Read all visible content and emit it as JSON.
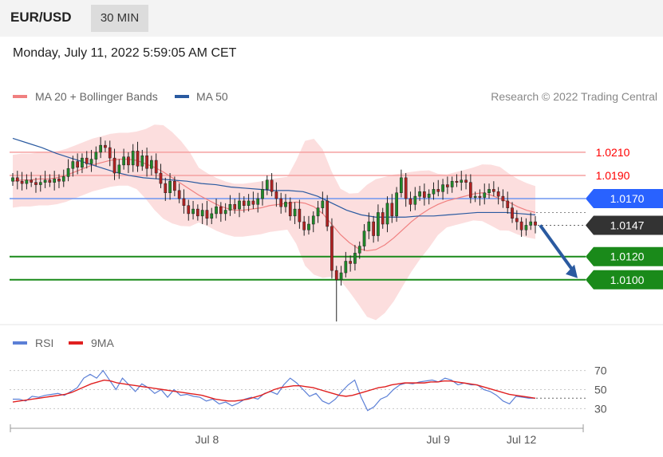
{
  "header": {
    "pair": "EUR/USD",
    "timeframe": "30 MIN"
  },
  "timestamp": "Monday, July 11, 2022 5:59:05 AM CET",
  "legend": {
    "items": [
      {
        "label": "MA 20 + Bollinger Bands",
        "color": "#f08080"
      },
      {
        "label": "MA 50",
        "color": "#2a5aa0"
      }
    ],
    "credit": "Research © 2022 Trading Central"
  },
  "rsi_legend": {
    "items": [
      {
        "label": "RSI",
        "color": "#5b7fd6"
      },
      {
        "label": "9MA",
        "color": "#e02020"
      }
    ]
  },
  "chart_data": [
    {
      "type": "candlestick",
      "ylim": [
        1.0062,
        1.0245
      ],
      "current_price": 1.0147,
      "levels": [
        {
          "value": 1.021,
          "label": "1.0210",
          "kind": "resistance",
          "color": "#ff0000"
        },
        {
          "value": 1.019,
          "label": "1.0190",
          "kind": "resistance",
          "color": "#ff0000"
        },
        {
          "value": 1.017,
          "label": "1.0170",
          "kind": "pivot",
          "color": "#2962ff"
        },
        {
          "value": 1.0147,
          "label": "1.0147",
          "kind": "last",
          "color": "#333333"
        },
        {
          "value": 1.012,
          "label": "1.0120",
          "kind": "support",
          "color": "#1a8a1a"
        },
        {
          "value": 1.01,
          "label": "1.0100",
          "kind": "support",
          "color": "#1a8a1a"
        }
      ],
      "forecast": {
        "from": 1.0147,
        "to": 1.01,
        "color": "#2a5aa0"
      },
      "closes": [
        1.0188,
        1.0185,
        1.0183,
        1.0186,
        1.0184,
        1.0182,
        1.0184,
        1.0186,
        1.0184,
        1.0187,
        1.0185,
        1.0189,
        1.0196,
        1.0202,
        1.0197,
        1.0205,
        1.02,
        1.0204,
        1.021,
        1.0216,
        1.0214,
        1.0205,
        1.0192,
        1.0199,
        1.0206,
        1.0199,
        1.0211,
        1.0198,
        1.0207,
        1.0196,
        1.0203,
        1.0192,
        1.0183,
        1.0175,
        1.0185,
        1.0177,
        1.017,
        1.0164,
        1.0157,
        1.0161,
        1.0155,
        1.016,
        1.0153,
        1.0157,
        1.0163,
        1.0157,
        1.016,
        1.0165,
        1.0161,
        1.0168,
        1.0164,
        1.0168,
        1.0165,
        1.017,
        1.0178,
        1.0186,
        1.0176,
        1.017,
        1.0163,
        1.0167,
        1.0155,
        1.0161,
        1.015,
        1.0143,
        1.0148,
        1.0155,
        1.0162,
        1.0168,
        1.0146,
        1.0108,
        1.01,
        1.0106,
        1.0116,
        1.0114,
        1.0123,
        1.0129,
        1.0142,
        1.015,
        1.0138,
        1.0158,
        1.0148,
        1.0166,
        1.0155,
        1.0175,
        1.0188,
        1.017,
        1.0165,
        1.0172,
        1.0176,
        1.0171,
        1.0174,
        1.0178,
        1.0176,
        1.0182,
        1.018,
        1.0185,
        1.0184,
        1.0186,
        1.0184,
        1.0171,
        1.0172,
        1.0171,
        1.0175,
        1.0178,
        1.0176,
        1.0172,
        1.0168,
        1.0162,
        1.0153,
        1.015,
        1.0143,
        1.0147,
        1.015,
        1.0147
      ],
      "ma20": [
        1.0185,
        1.0186,
        1.0186,
        1.0187,
        1.0187,
        1.0188,
        1.019,
        1.0193,
        1.0196,
        1.0199,
        1.0201,
        1.0203,
        1.0204,
        1.0204,
        1.0203,
        1.02,
        1.0197,
        1.0193,
        1.0188,
        1.0183,
        1.0178,
        1.0173,
        1.0169,
        1.0165,
        1.0162,
        1.016,
        1.016,
        1.0161,
        1.0162,
        1.0164,
        1.0165,
        1.0166,
        1.0167,
        1.0166,
        1.0163,
        1.0157,
        1.0148,
        1.0139,
        1.0132,
        1.0127,
        1.0125,
        1.0126,
        1.013,
        1.0136,
        1.0143,
        1.015,
        1.0156,
        1.0161,
        1.0165,
        1.0168,
        1.017,
        1.0172,
        1.0174,
        1.0175,
        1.0173,
        1.017,
        1.0167,
        1.0163,
        1.016,
        1.0158
      ],
      "ma50": [
        1.0222,
        1.0218,
        1.0214,
        1.0209,
        1.0205,
        1.0201,
        1.0197,
        1.0193,
        1.019,
        1.0188,
        1.0187,
        1.0186,
        1.0185,
        1.0183,
        1.0182,
        1.018,
        1.0179,
        1.0178,
        1.0177,
        1.0177,
        1.0176,
        1.0172,
        1.0166,
        1.016,
        1.0156,
        1.0154,
        1.0154,
        1.0154,
        1.0155,
        1.0155,
        1.0156,
        1.0157,
        1.0158,
        1.0158,
        1.0158,
        1.0157,
        1.0156
      ]
    },
    {
      "type": "line",
      "ylim": [
        22,
        78
      ],
      "ticks": [
        30,
        50,
        70
      ],
      "xticks": [
        {
          "label": "Jul 8",
          "index": 42
        },
        {
          "label": "Jul 9",
          "index": 92
        },
        {
          "label": "Jul 12",
          "index": 110
        }
      ],
      "series": [
        {
          "name": "RSI",
          "values": [
            40,
            40,
            38,
            43,
            42,
            44,
            45,
            46,
            44,
            48,
            52,
            62,
            66,
            62,
            70,
            60,
            50,
            62,
            55,
            48,
            56,
            52,
            46,
            50,
            42,
            50,
            44,
            45,
            43,
            42,
            38,
            40,
            35,
            37,
            33,
            36,
            40,
            42,
            40,
            46,
            48,
            45,
            55,
            62,
            57,
            50,
            43,
            46,
            38,
            35,
            40,
            48,
            55,
            60,
            42,
            28,
            32,
            40,
            43,
            50,
            55,
            57,
            56,
            58,
            59,
            60,
            58,
            62,
            60,
            55,
            57,
            55,
            55,
            50,
            48,
            44,
            38,
            35,
            43,
            42,
            41,
            41
          ]
        },
        {
          "name": "9MA",
          "values": [
            37,
            38,
            39,
            40,
            41,
            42,
            43,
            44,
            45,
            47,
            50,
            53,
            56,
            58,
            60,
            59,
            57,
            56,
            55,
            54,
            53,
            52,
            51,
            50,
            49,
            48,
            47,
            46,
            45,
            44,
            42,
            40,
            39,
            38,
            38,
            39,
            40,
            42,
            44,
            47,
            50,
            52,
            53,
            54,
            54,
            53,
            52,
            50,
            48,
            46,
            44,
            43,
            44,
            46,
            48,
            50,
            52,
            53,
            55,
            56,
            57,
            57,
            57,
            57,
            58,
            58,
            59,
            59,
            58,
            57,
            56,
            55,
            53,
            51,
            49,
            47,
            45,
            44,
            43,
            42,
            41
          ]
        }
      ]
    }
  ]
}
